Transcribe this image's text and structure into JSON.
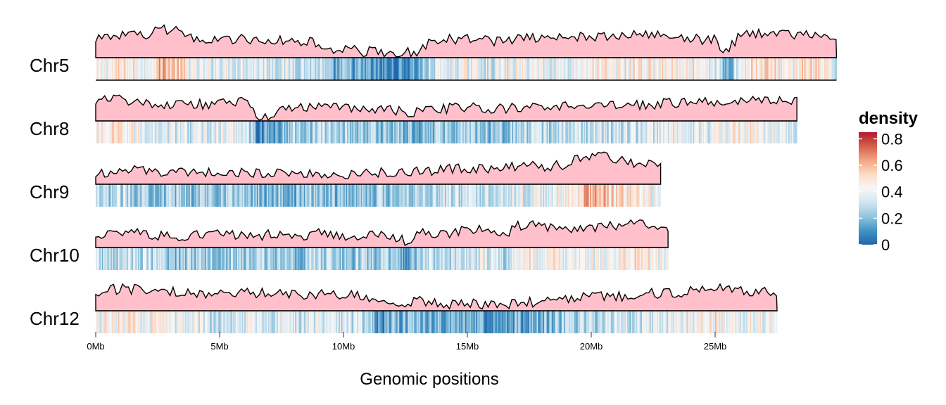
{
  "chart_data": {
    "type": "heatmap",
    "title": "",
    "xlabel": "Genomic positions",
    "x_unit": "Mb",
    "x_ticks": [
      "0Mb",
      "5Mb",
      "10Mb",
      "15Mb",
      "20Mb",
      "25Mb"
    ],
    "x_tick_values": [
      0,
      5,
      10,
      15,
      20,
      25
    ],
    "xlim": [
      0,
      30
    ],
    "legend": {
      "title": "density",
      "ticks": [
        "0",
        "0.2",
        "0.4",
        "0.6",
        "0.8"
      ],
      "tick_values": [
        0,
        0.2,
        0.4,
        0.6,
        0.8
      ],
      "range": [
        0,
        0.85
      ],
      "placement": "right",
      "colors": [
        "#2166ac",
        "#4393c3",
        "#92c5de",
        "#d1e5f0",
        "#f7f7f7",
        "#fddbc7",
        "#f4a582",
        "#d6604d",
        "#b2182b"
      ]
    },
    "density_curve_fill": "#ffc0cb",
    "density_curve_stroke": "#000000",
    "chromosomes": [
      {
        "name": "Chr5",
        "length_mb": 29.9,
        "density_profile": [
          [
            0,
            0.4
          ],
          [
            1,
            0.48
          ],
          [
            2,
            0.42
          ],
          [
            2.7,
            0.62
          ],
          [
            3.5,
            0.5
          ],
          [
            4,
            0.35
          ],
          [
            5,
            0.4
          ],
          [
            6,
            0.38
          ],
          [
            7,
            0.36
          ],
          [
            8,
            0.34
          ],
          [
            9,
            0.3
          ],
          [
            9.5,
            0.12
          ],
          [
            10,
            0.18
          ],
          [
            11,
            0.12
          ],
          [
            12,
            0.06
          ],
          [
            13,
            0.15
          ],
          [
            13.5,
            0.3
          ],
          [
            14,
            0.38
          ],
          [
            15,
            0.4
          ],
          [
            16,
            0.34
          ],
          [
            17,
            0.4
          ],
          [
            18,
            0.42
          ],
          [
            19,
            0.38
          ],
          [
            20,
            0.46
          ],
          [
            21,
            0.44
          ],
          [
            22,
            0.48
          ],
          [
            23,
            0.44
          ],
          [
            24,
            0.4
          ],
          [
            25,
            0.36
          ],
          [
            25.5,
            0.12
          ],
          [
            26,
            0.48
          ],
          [
            27,
            0.5
          ],
          [
            28,
            0.46
          ],
          [
            29,
            0.52
          ],
          [
            29.9,
            0.3
          ]
        ]
      },
      {
        "name": "Chr8",
        "length_mb": 28.3,
        "density_profile": [
          [
            0,
            0.42
          ],
          [
            1,
            0.46
          ],
          [
            2,
            0.38
          ],
          [
            3,
            0.36
          ],
          [
            4,
            0.34
          ],
          [
            5,
            0.36
          ],
          [
            6,
            0.4
          ],
          [
            6.5,
            0.1
          ],
          [
            7,
            0.12
          ],
          [
            8,
            0.26
          ],
          [
            9,
            0.28
          ],
          [
            10,
            0.26
          ],
          [
            11,
            0.24
          ],
          [
            12,
            0.22
          ],
          [
            13,
            0.18
          ],
          [
            14,
            0.26
          ],
          [
            15,
            0.28
          ],
          [
            16,
            0.24
          ],
          [
            17,
            0.26
          ],
          [
            18,
            0.28
          ],
          [
            19,
            0.3
          ],
          [
            20,
            0.32
          ],
          [
            21,
            0.3
          ],
          [
            22,
            0.34
          ],
          [
            23,
            0.36
          ],
          [
            24,
            0.38
          ],
          [
            25,
            0.4
          ],
          [
            26,
            0.44
          ],
          [
            27,
            0.42
          ],
          [
            28.3,
            0.38
          ]
        ]
      },
      {
        "name": "Chr9",
        "length_mb": 22.8,
        "density_profile": [
          [
            0,
            0.22
          ],
          [
            1,
            0.3
          ],
          [
            2,
            0.26
          ],
          [
            3,
            0.24
          ],
          [
            4,
            0.22
          ],
          [
            5,
            0.26
          ],
          [
            6,
            0.24
          ],
          [
            7,
            0.22
          ],
          [
            8,
            0.2
          ],
          [
            9,
            0.24
          ],
          [
            10,
            0.22
          ],
          [
            11,
            0.24
          ],
          [
            12,
            0.26
          ],
          [
            13,
            0.28
          ],
          [
            14,
            0.3
          ],
          [
            15,
            0.32
          ],
          [
            16,
            0.34
          ],
          [
            17,
            0.36
          ],
          [
            18,
            0.38
          ],
          [
            19,
            0.4
          ],
          [
            19.5,
            0.55
          ],
          [
            20,
            0.62
          ],
          [
            21,
            0.5
          ],
          [
            22,
            0.44
          ],
          [
            22.8,
            0.36
          ]
        ]
      },
      {
        "name": "Chr10",
        "length_mb": 23.1,
        "density_profile": [
          [
            0,
            0.28
          ],
          [
            1,
            0.32
          ],
          [
            2,
            0.3
          ],
          [
            3,
            0.22
          ],
          [
            4,
            0.28
          ],
          [
            5,
            0.26
          ],
          [
            6,
            0.24
          ],
          [
            7,
            0.26
          ],
          [
            8,
            0.22
          ],
          [
            9,
            0.28
          ],
          [
            10,
            0.24
          ],
          [
            11,
            0.26
          ],
          [
            12,
            0.22
          ],
          [
            12.5,
            0.12
          ],
          [
            13,
            0.28
          ],
          [
            14,
            0.3
          ],
          [
            15,
            0.34
          ],
          [
            16,
            0.36
          ],
          [
            16.5,
            0.22
          ],
          [
            17,
            0.46
          ],
          [
            18,
            0.44
          ],
          [
            19,
            0.42
          ],
          [
            20,
            0.4
          ],
          [
            21,
            0.44
          ],
          [
            22,
            0.48
          ],
          [
            23.1,
            0.4
          ]
        ]
      },
      {
        "name": "Chr12",
        "length_mb": 27.5,
        "density_profile": [
          [
            0,
            0.4
          ],
          [
            1,
            0.46
          ],
          [
            2,
            0.42
          ],
          [
            3,
            0.4
          ],
          [
            4,
            0.36
          ],
          [
            5,
            0.34
          ],
          [
            6,
            0.38
          ],
          [
            7,
            0.36
          ],
          [
            8,
            0.34
          ],
          [
            9,
            0.36
          ],
          [
            10,
            0.34
          ],
          [
            11,
            0.3
          ],
          [
            11.5,
            0.1
          ],
          [
            12,
            0.18
          ],
          [
            13,
            0.2
          ],
          [
            14,
            0.14
          ],
          [
            15,
            0.16
          ],
          [
            16,
            0.14
          ],
          [
            17,
            0.16
          ],
          [
            18,
            0.2
          ],
          [
            19,
            0.24
          ],
          [
            20,
            0.28
          ],
          [
            21,
            0.3
          ],
          [
            22,
            0.34
          ],
          [
            23,
            0.38
          ],
          [
            24,
            0.4
          ],
          [
            25,
            0.46
          ],
          [
            26,
            0.42
          ],
          [
            27.5,
            0.4
          ]
        ]
      }
    ]
  }
}
